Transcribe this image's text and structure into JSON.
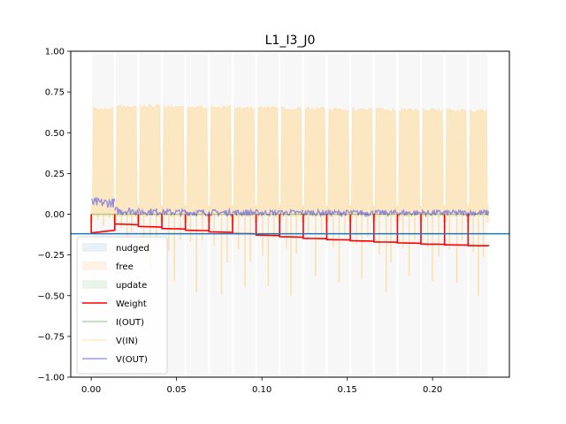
{
  "chart_data": {
    "type": "line",
    "title": "L1_I3_J0",
    "xlabel": "",
    "ylabel": "",
    "xlim": [
      -0.012,
      0.245
    ],
    "ylim": [
      -1.0,
      1.0
    ],
    "x_ticks": [
      0.0,
      0.05,
      0.1,
      0.15,
      0.2
    ],
    "x_tick_labels": [
      "0.00",
      "0.05",
      "0.10",
      "0.15",
      "0.20"
    ],
    "y_ticks": [
      1.0,
      0.75,
      0.5,
      0.25,
      0.0,
      -0.25,
      -0.5,
      -0.75,
      -1.0
    ],
    "y_tick_labels": [
      "1.00",
      "0.75",
      "0.50",
      "0.25",
      "0.00",
      "−0.25",
      "−0.50",
      "−0.75",
      "−1.00"
    ],
    "grid": false,
    "legend_position": "lower-left",
    "legend": [
      {
        "label": "nudged",
        "kind": "patch",
        "color": "#1f77b4",
        "alpha": 0.1
      },
      {
        "label": "free",
        "kind": "patch",
        "color": "#ff7f0e",
        "alpha": 0.1
      },
      {
        "label": "update",
        "kind": "patch",
        "color": "#2ca02c",
        "alpha": 0.1
      },
      {
        "label": "Weight",
        "kind": "line",
        "color": "#ff0000",
        "alpha": 1.0
      },
      {
        "label": "I(OUT)",
        "kind": "line",
        "color": "#2ca02c",
        "alpha": 0.4
      },
      {
        "label": "V(IN)",
        "kind": "line",
        "color": "#ffd27f",
        "alpha": 0.45
      },
      {
        "label": "V(OUT)",
        "kind": "line",
        "color": "#0000ff",
        "alpha": 0.4
      }
    ],
    "horizontal_line": {
      "y": -0.12,
      "color": "#1f77b4"
    },
    "cycle_starts": [
      0.0,
      0.0138,
      0.0276,
      0.0414,
      0.0552,
      0.069,
      0.0828,
      0.0966,
      0.1104,
      0.1242,
      0.138,
      0.1518,
      0.1656,
      0.1794,
      0.1932,
      0.207,
      0.2208
    ],
    "cycle_length": 0.0138,
    "x_end": 0.2328,
    "series": [
      {
        "name": "Weight",
        "color": "#ff0000",
        "x": [
          0.0,
          0.0138,
          0.0276,
          0.0414,
          0.0552,
          0.069,
          0.0828,
          0.0966,
          0.1104,
          0.1242,
          0.138,
          0.1518,
          0.1656,
          0.1794,
          0.1932,
          0.207,
          0.2208,
          0.2328
        ],
        "values": [
          -0.115,
          -0.06,
          -0.075,
          -0.088,
          -0.098,
          -0.108,
          -0.118,
          -0.128,
          -0.138,
          -0.148,
          -0.156,
          -0.163,
          -0.17,
          -0.176,
          -0.183,
          -0.188,
          -0.193,
          -0.195
        ]
      },
      {
        "name": "V(IN)",
        "color": "#ffd27f",
        "upper_per_cycle": [
          0.66,
          0.67,
          0.675,
          0.672,
          0.67,
          0.668,
          0.666,
          0.664,
          0.662,
          0.66,
          0.658,
          0.656,
          0.654,
          0.652,
          0.65,
          0.648,
          0.645
        ],
        "lower_per_cycle": [
          -0.07,
          -0.24,
          -0.35,
          -0.41,
          -0.48,
          -0.49,
          -0.45,
          -0.44,
          -0.5,
          -0.38,
          -0.42,
          -0.4,
          -0.48,
          -0.38,
          -0.41,
          -0.42,
          -0.5
        ]
      },
      {
        "name": "V(OUT)",
        "color": "#0000ff",
        "mean_per_cycle": [
          0.07,
          0.02,
          0.015,
          0.012,
          0.01,
          0.01,
          0.01,
          0.009,
          0.009,
          0.009,
          0.008,
          0.008,
          0.008,
          0.008,
          0.008,
          0.008,
          0.008
        ],
        "spread_per_cycle": [
          0.03,
          0.025,
          0.022,
          0.02,
          0.02,
          0.02,
          0.02,
          0.018,
          0.018,
          0.018,
          0.018,
          0.018,
          0.018,
          0.018,
          0.018,
          0.018,
          0.018
        ]
      },
      {
        "name": "I(OUT)",
        "color": "#2ca02c",
        "value": 0.0
      }
    ],
    "band_top": 0.985,
    "band_color": "#e8e8e8"
  }
}
